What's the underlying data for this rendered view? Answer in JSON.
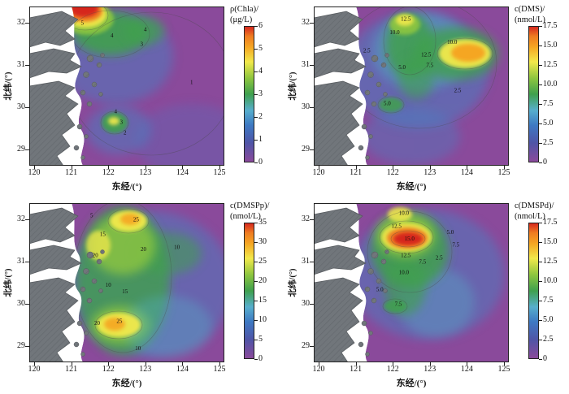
{
  "figure": {
    "x_axis_label": "东经/(°)",
    "y_axis_label": "北纬/(°)",
    "x_ticks": [
      "120",
      "121",
      "122",
      "123",
      "124",
      "125"
    ],
    "y_ticks": [
      "32",
      "31",
      "30",
      "29"
    ],
    "background_color": "#ffffff",
    "land_color": "#71767b",
    "colormap_colors": [
      "#8a4a9b",
      "#4f55a7",
      "#3e79c3",
      "#57aecd",
      "#3fa04e",
      "#8ec63f",
      "#f2e94b",
      "#f5a623",
      "#ee7c21",
      "#d6281e"
    ]
  },
  "panels": [
    {
      "id": "chla",
      "title_line1": "ρ(Chla)/",
      "title_line2": "(μg/L)",
      "colorbar_ticks": [
        "6",
        "5",
        "4",
        "3",
        "2",
        "1",
        "0"
      ]
    },
    {
      "id": "dms",
      "title_line1": "c(DMS)/",
      "title_line2": "(nmol/L)",
      "colorbar_ticks": [
        "17.5",
        "15.0",
        "12.5",
        "10.0",
        "7.5",
        "5.0",
        "2.5",
        "0"
      ]
    },
    {
      "id": "dmspp",
      "title_line1": "c(DMSPp)/",
      "title_line2": "(nmol/L)",
      "colorbar_ticks": [
        "35",
        "30",
        "25",
        "20",
        "15",
        "10",
        "5",
        "0"
      ]
    },
    {
      "id": "dmspd",
      "title_line1": "c(DMSPd)/",
      "title_line2": "(nmol/L)",
      "colorbar_ticks": [
        "17.5",
        "15.0",
        "12.5",
        "10.0",
        "7.5",
        "5.0",
        "2.5",
        "0"
      ]
    }
  ],
  "chart_data": [
    {
      "type": "heatmap",
      "variable": "ρ(Chla)",
      "units": "μg/L",
      "colorbar_title": "ρ(Chla)/(μg/L)",
      "xlabel": "东经/(°)",
      "ylabel": "北纬/(°)",
      "xlim": [
        120,
        125
      ],
      "ylim": [
        28.7,
        32.4
      ],
      "xticks": [
        120,
        121,
        122,
        123,
        124,
        125
      ],
      "yticks": [
        29,
        30,
        31,
        32
      ],
      "colorbar_range": [
        0,
        6
      ],
      "colorbar_ticks": [
        0,
        1,
        2,
        3,
        4,
        5,
        6
      ],
      "colormap": "purple-blue-green-yellow-red rainbow",
      "contour_labels": [
        {
          "value": "5",
          "lon": 121.3,
          "lat": 32.0
        },
        {
          "value": "4",
          "lon": 122.1,
          "lat": 31.7
        },
        {
          "value": "4",
          "lon": 123.0,
          "lat": 31.85
        },
        {
          "value": "3",
          "lon": 122.9,
          "lat": 31.5
        },
        {
          "value": "1",
          "lon": 124.25,
          "lat": 30.6
        },
        {
          "value": "4",
          "lon": 122.2,
          "lat": 29.9
        },
        {
          "value": "3",
          "lon": 122.35,
          "lat": 29.65
        },
        {
          "value": "2",
          "lon": 122.45,
          "lat": 29.4
        }
      ],
      "notes": "High chlorophyll patch (>5 μg/L, red) at the Changjiang river mouth near 121.4°E 32.3°N; secondary maximum (~4 μg/L) near 122.2°E 29.9°N; offshore background mostly 0–2 μg/L (purple/blue)."
    },
    {
      "type": "heatmap",
      "variable": "c(DMS)",
      "units": "nmol/L",
      "colorbar_title": "c(DMS)/(nmol/L)",
      "xlabel": "东经/(°)",
      "ylabel": "北纬/(°)",
      "xlim": [
        120,
        125
      ],
      "ylim": [
        28.7,
        32.4
      ],
      "xticks": [
        120,
        121,
        122,
        123,
        124,
        125
      ],
      "yticks": [
        29,
        30,
        31,
        32
      ],
      "colorbar_range": [
        0,
        17.5
      ],
      "colorbar_ticks": [
        0,
        2.5,
        5.0,
        7.5,
        10.0,
        12.5,
        15.0,
        17.5
      ],
      "colormap": "purple-blue-green-yellow-red rainbow",
      "contour_labels": [
        {
          "value": "12.5",
          "lon": 122.35,
          "lat": 32.1
        },
        {
          "value": "10.0",
          "lon": 122.05,
          "lat": 31.78
        },
        {
          "value": "2.5",
          "lon": 121.3,
          "lat": 31.35
        },
        {
          "value": "10.0",
          "lon": 123.6,
          "lat": 31.55
        },
        {
          "value": "12.5",
          "lon": 122.9,
          "lat": 31.25
        },
        {
          "value": "7.5",
          "lon": 123.0,
          "lat": 31.0
        },
        {
          "value": "5.0",
          "lon": 122.25,
          "lat": 30.95
        },
        {
          "value": "2.5",
          "lon": 123.75,
          "lat": 30.4
        },
        {
          "value": "5.0",
          "lon": 121.85,
          "lat": 30.1
        }
      ],
      "notes": "DMS maximum (>15 nmol/L, orange) offshore near 123.9°E 31.2°N; elevated band (10–12.5 nmol/L, green) near 122.4°E 32.1°N extending south; low values (<2.5 nmol/L, purple) nearshore and in the southeast."
    },
    {
      "type": "heatmap",
      "variable": "c(DMSPp)",
      "units": "nmol/L",
      "colorbar_title": "c(DMSPp)/(nmol/L)",
      "xlabel": "东经/(°)",
      "ylabel": "北纬/(°)",
      "xlim": [
        120,
        125
      ],
      "ylim": [
        28.7,
        32.4
      ],
      "xticks": [
        120,
        121,
        122,
        123,
        124,
        125
      ],
      "yticks": [
        29,
        30,
        31,
        32
      ],
      "colorbar_range": [
        0,
        35
      ],
      "colorbar_ticks": [
        0,
        5,
        10,
        15,
        20,
        25,
        30,
        35
      ],
      "colormap": "purple-blue-green-yellow-red rainbow",
      "contour_labels": [
        {
          "value": "5",
          "lon": 121.55,
          "lat": 32.1
        },
        {
          "value": "25",
          "lon": 122.75,
          "lat": 32.0
        },
        {
          "value": "15",
          "lon": 121.85,
          "lat": 31.65
        },
        {
          "value": "20",
          "lon": 121.65,
          "lat": 31.15
        },
        {
          "value": "20",
          "lon": 122.95,
          "lat": 31.3
        },
        {
          "value": "10",
          "lon": 123.85,
          "lat": 31.35
        },
        {
          "value": "10",
          "lon": 122.0,
          "lat": 30.45
        },
        {
          "value": "15",
          "lon": 122.45,
          "lat": 30.3
        },
        {
          "value": "20",
          "lon": 121.7,
          "lat": 29.55
        },
        {
          "value": "25",
          "lon": 122.3,
          "lat": 29.6
        },
        {
          "value": "10",
          "lon": 122.8,
          "lat": 28.95
        }
      ],
      "notes": "Broad high-DMSPp band (15–25 nmol/L, green/yellow) along 122–123°E; maxima (~25 nmol/L) near 122.8°E 32.0°N and 122.3°E 29.6°N; lower values (5–10 nmol/L, blue) offshore east of 124°E."
    },
    {
      "type": "heatmap",
      "variable": "c(DMSPd)",
      "units": "nmol/L",
      "colorbar_title": "c(DMSPd)/(nmol/L)",
      "xlabel": "东经/(°)",
      "ylabel": "北纬/(°)",
      "xlim": [
        120,
        125
      ],
      "ylim": [
        28.7,
        32.4
      ],
      "xticks": [
        120,
        121,
        122,
        123,
        124,
        125
      ],
      "yticks": [
        29,
        30,
        31,
        32
      ],
      "colorbar_range": [
        0,
        17.5
      ],
      "colorbar_ticks": [
        0,
        2.5,
        5.0,
        7.5,
        10.0,
        12.5,
        15.0,
        17.5
      ],
      "colormap": "purple-blue-green-yellow-red rainbow",
      "contour_labels": [
        {
          "value": "10.0",
          "lon": 122.3,
          "lat": 32.15
        },
        {
          "value": "12.5",
          "lon": 122.1,
          "lat": 31.85
        },
        {
          "value": "15.0",
          "lon": 122.45,
          "lat": 31.55
        },
        {
          "value": "5.0",
          "lon": 123.55,
          "lat": 31.7
        },
        {
          "value": "7.5",
          "lon": 123.7,
          "lat": 31.4
        },
        {
          "value": "12.5",
          "lon": 122.35,
          "lat": 31.15
        },
        {
          "value": "7.5",
          "lon": 122.8,
          "lat": 31.0
        },
        {
          "value": "2.5",
          "lon": 123.25,
          "lat": 31.1
        },
        {
          "value": "10.0",
          "lon": 122.3,
          "lat": 30.75
        },
        {
          "value": "5.0",
          "lon": 121.65,
          "lat": 30.35
        },
        {
          "value": "7.5",
          "lon": 122.15,
          "lat": 30.0
        }
      ],
      "notes": "DMSPd maximum band (>15 nmol/L, red) near 122.4°E 31.5°N; concentric decrease outward (12.5 → 10 → 7.5 → 5 → 2.5 nmol/L); small green patch (~7.5 nmol/L) near 122.1°E 30.0°N; background purple/blue offshore."
    }
  ]
}
